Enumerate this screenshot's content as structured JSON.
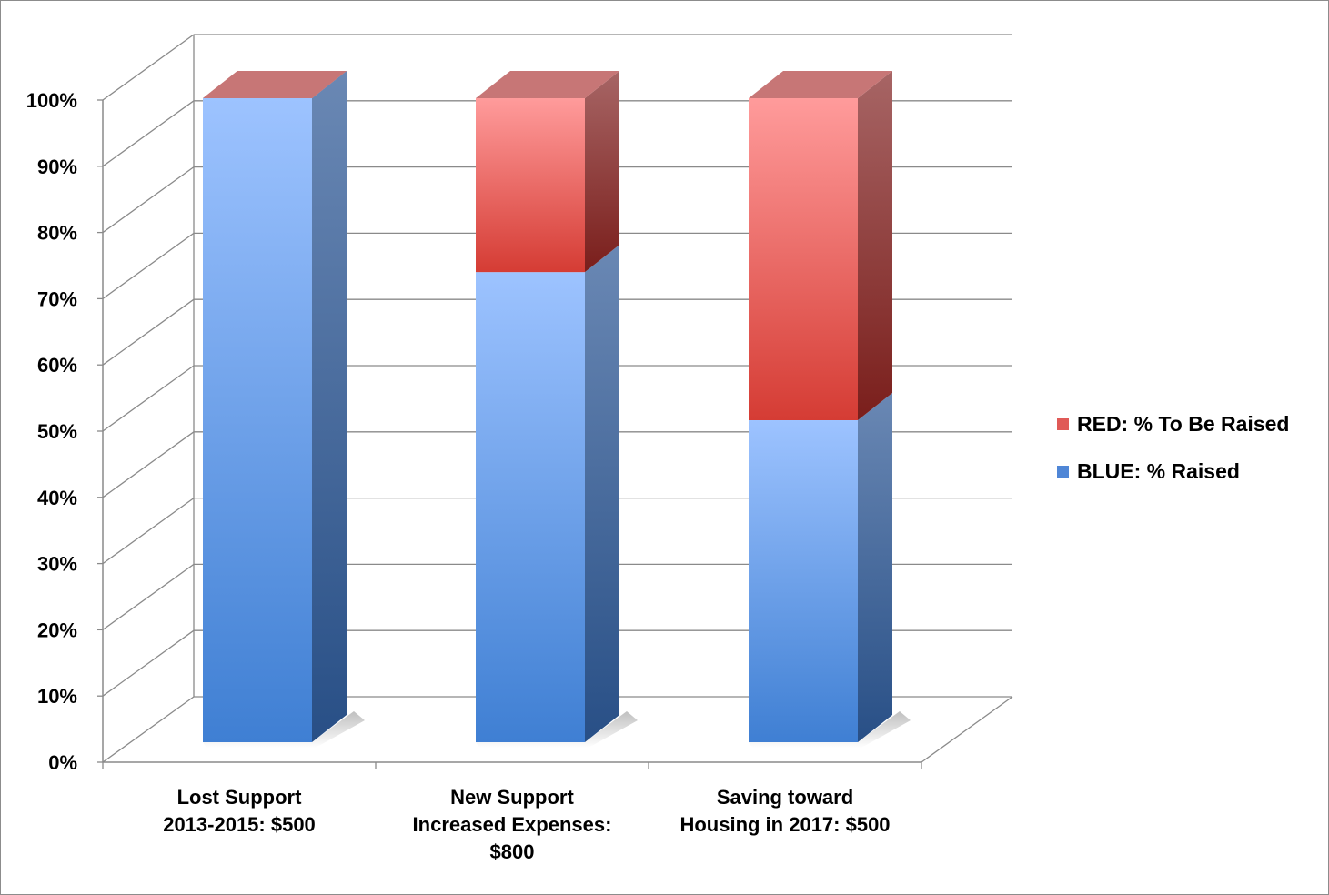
{
  "chart_data": {
    "type": "bar",
    "stacked": true,
    "three_d": true,
    "percent": true,
    "categories": [
      "Lost Support\n2013-2015: $500",
      "New Support\nIncreased Expenses:\n$800",
      "Saving toward\nHousing in 2017: $500"
    ],
    "series": [
      {
        "name": "BLUE: % Raised",
        "values": [
          100,
          73,
          50
        ],
        "color": "#4f86d6"
      },
      {
        "name": "RED: % To Be Raised",
        "values": [
          0,
          27,
          50
        ],
        "color": "#e05a57"
      }
    ],
    "ylim": [
      0,
      100
    ],
    "yticks": [
      "0%",
      "10%",
      "20%",
      "30%",
      "40%",
      "50%",
      "60%",
      "70%",
      "80%",
      "90%",
      "100%"
    ],
    "grid": true,
    "legend_position": "right"
  }
}
